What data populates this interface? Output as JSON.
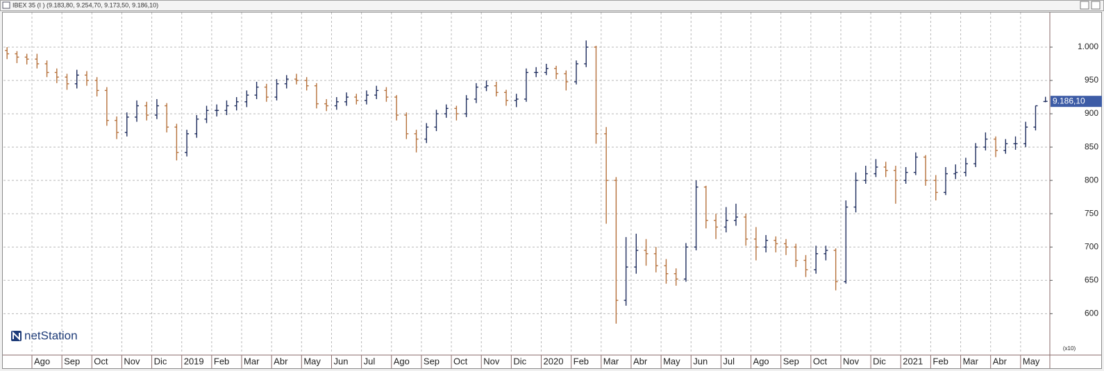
{
  "window_title": "IBEX 35 (I ) (9.183,80, 9.254,70, 9.173,50, 9.186,10)",
  "logo_text": "netStation",
  "chart_data": {
    "type": "ohlc",
    "up_color": "#1c2b5c",
    "down_color": "#b5703a",
    "grid": true,
    "y_axis_side": "right",
    "y_unit_label": "(x10)",
    "last_price": {
      "value": 918.61,
      "label": "9.186,10"
    },
    "xlim": [
      -0.95,
      33.93
    ],
    "ylim": [
      540,
      1052
    ],
    "yticks": [
      {
        "value": 600,
        "label": "600"
      },
      {
        "value": 650,
        "label": "650"
      },
      {
        "value": 700,
        "label": "700"
      },
      {
        "value": 750,
        "label": "750"
      },
      {
        "value": 800,
        "label": "800"
      },
      {
        "value": 850,
        "label": "850"
      },
      {
        "value": 900,
        "label": "900"
      },
      {
        "value": 950,
        "label": "950"
      },
      {
        "value": 1000,
        "label": "1.000"
      }
    ],
    "xticks": [
      {
        "value": 0,
        "label": "Ago"
      },
      {
        "value": 1,
        "label": "Sep"
      },
      {
        "value": 2,
        "label": "Oct"
      },
      {
        "value": 3,
        "label": "Nov"
      },
      {
        "value": 4,
        "label": "Dic"
      },
      {
        "value": 5,
        "label": "2019"
      },
      {
        "value": 6,
        "label": "Feb"
      },
      {
        "value": 7,
        "label": "Mar"
      },
      {
        "value": 8,
        "label": "Abr"
      },
      {
        "value": 9,
        "label": "May"
      },
      {
        "value": 10,
        "label": "Jun"
      },
      {
        "value": 11,
        "label": "Jul"
      },
      {
        "value": 12,
        "label": "Ago"
      },
      {
        "value": 13,
        "label": "Sep"
      },
      {
        "value": 14,
        "label": "Oct"
      },
      {
        "value": 15,
        "label": "Nov"
      },
      {
        "value": 16,
        "label": "Dic"
      },
      {
        "value": 17,
        "label": "2020"
      },
      {
        "value": 18,
        "label": "Feb"
      },
      {
        "value": 19,
        "label": "Mar"
      },
      {
        "value": 20,
        "label": "Abr"
      },
      {
        "value": 21,
        "label": "May"
      },
      {
        "value": 22,
        "label": "Jun"
      },
      {
        "value": 23,
        "label": "Jul"
      },
      {
        "value": 24,
        "label": "Ago"
      },
      {
        "value": 25,
        "label": "Sep"
      },
      {
        "value": 26,
        "label": "Oct"
      },
      {
        "value": 27,
        "label": "Nov"
      },
      {
        "value": 28,
        "label": "Dic"
      },
      {
        "value": 29,
        "label": "2021"
      },
      {
        "value": 30,
        "label": "Feb"
      },
      {
        "value": 31,
        "label": "Mar"
      },
      {
        "value": 32,
        "label": "Abr"
      },
      {
        "value": 33,
        "label": "May"
      }
    ],
    "x": [
      -0.83,
      -0.5,
      -0.17,
      0.17,
      0.5,
      0.83,
      1.17,
      1.5,
      1.83,
      2.17,
      2.5,
      2.83,
      3.17,
      3.5,
      3.83,
      4.17,
      4.5,
      4.83,
      5.17,
      5.5,
      5.83,
      6.17,
      6.5,
      6.83,
      7.17,
      7.5,
      7.83,
      8.17,
      8.5,
      8.83,
      9.17,
      9.5,
      9.83,
      10.17,
      10.5,
      10.83,
      11.17,
      11.5,
      11.83,
      12.17,
      12.5,
      12.83,
      13.17,
      13.5,
      13.83,
      14.17,
      14.5,
      14.83,
      15.17,
      15.5,
      15.83,
      16.17,
      16.5,
      16.83,
      17.17,
      17.5,
      17.83,
      18.17,
      18.5,
      18.83,
      19.17,
      19.5,
      19.83,
      20.17,
      20.5,
      20.83,
      21.17,
      21.5,
      21.83,
      22.17,
      22.5,
      22.83,
      23.17,
      23.5,
      23.83,
      24.17,
      24.5,
      24.83,
      25.17,
      25.5,
      25.83,
      26.17,
      26.5,
      26.83,
      27.17,
      27.5,
      27.83,
      28.17,
      28.5,
      28.83,
      29.17,
      29.5,
      29.83,
      30.17,
      30.5,
      30.83,
      31.17,
      31.5,
      31.83,
      32.17,
      32.5,
      32.83,
      33.17,
      33.5,
      33.83
    ],
    "open": [
      995,
      990,
      985,
      982,
      975,
      962,
      955,
      945,
      958,
      950,
      935,
      890,
      872,
      895,
      912,
      898,
      912,
      880,
      842,
      870,
      892,
      905,
      905,
      912,
      918,
      928,
      940,
      925,
      945,
      952,
      950,
      942,
      915,
      912,
      918,
      925,
      920,
      928,
      935,
      925,
      898,
      870,
      862,
      880,
      900,
      908,
      900,
      922,
      940,
      942,
      932,
      920,
      922,
      962,
      962,
      968,
      960,
      948,
      975,
      1000,
      870,
      800,
      620,
      670,
      695,
      690,
      672,
      660,
      652,
      700,
      790,
      740,
      730,
      740,
      745,
      712,
      700,
      710,
      705,
      700,
      680,
      666,
      690,
      695,
      648,
      760,
      800,
      810,
      820,
      815,
      800,
      812,
      835,
      800,
      782,
      810,
      812,
      825,
      850,
      862,
      845,
      855,
      855,
      880,
      918.38
    ],
    "high": [
      1000,
      994,
      990,
      990,
      980,
      968,
      960,
      966,
      964,
      955,
      940,
      896,
      902,
      920,
      918,
      922,
      916,
      885,
      876,
      898,
      912,
      914,
      920,
      925,
      935,
      948,
      945,
      952,
      958,
      960,
      955,
      946,
      922,
      925,
      932,
      930,
      935,
      942,
      940,
      928,
      902,
      876,
      886,
      906,
      914,
      912,
      928,
      946,
      950,
      948,
      936,
      930,
      968,
      970,
      975,
      972,
      965,
      980,
      1010,
      1002,
      880,
      805,
      715,
      720,
      712,
      700,
      682,
      668,
      706,
      800,
      792,
      750,
      760,
      765,
      750,
      730,
      718,
      716,
      712,
      705,
      688,
      702,
      702,
      698,
      770,
      812,
      822,
      832,
      828,
      822,
      820,
      842,
      838,
      808,
      820,
      824,
      834,
      856,
      872,
      866,
      862,
      866,
      888,
      912,
      925.47
    ],
    "low": [
      982,
      976,
      974,
      968,
      955,
      946,
      936,
      938,
      942,
      926,
      882,
      862,
      866,
      888,
      890,
      892,
      872,
      830,
      836,
      864,
      886,
      896,
      898,
      905,
      910,
      922,
      918,
      920,
      938,
      944,
      935,
      908,
      904,
      906,
      912,
      914,
      914,
      922,
      918,
      890,
      862,
      842,
      856,
      874,
      894,
      890,
      895,
      916,
      934,
      926,
      912,
      910,
      918,
      955,
      958,
      952,
      935,
      944,
      970,
      855,
      735,
      585,
      612,
      660,
      672,
      662,
      645,
      642,
      648,
      695,
      728,
      712,
      722,
      732,
      702,
      680,
      692,
      692,
      688,
      670,
      655,
      660,
      680,
      635,
      645,
      752,
      795,
      805,
      805,
      765,
      795,
      808,
      792,
      770,
      778,
      802,
      806,
      820,
      845,
      835,
      840,
      846,
      850,
      875,
      917.35
    ],
    "close": [
      990,
      985,
      982,
      975,
      962,
      955,
      945,
      958,
      950,
      935,
      890,
      872,
      895,
      912,
      898,
      912,
      880,
      842,
      870,
      892,
      905,
      905,
      912,
      918,
      928,
      940,
      925,
      945,
      952,
      950,
      942,
      915,
      912,
      918,
      925,
      920,
      928,
      935,
      925,
      898,
      870,
      862,
      880,
      900,
      908,
      900,
      922,
      940,
      942,
      932,
      920,
      922,
      962,
      962,
      968,
      960,
      948,
      975,
      1000,
      870,
      800,
      620,
      670,
      695,
      690,
      672,
      660,
      652,
      700,
      790,
      740,
      730,
      740,
      745,
      712,
      700,
      710,
      705,
      700,
      680,
      666,
      690,
      695,
      648,
      760,
      800,
      810,
      820,
      815,
      800,
      812,
      835,
      800,
      782,
      810,
      812,
      825,
      850,
      862,
      845,
      855,
      855,
      880,
      912,
      918.61
    ]
  }
}
